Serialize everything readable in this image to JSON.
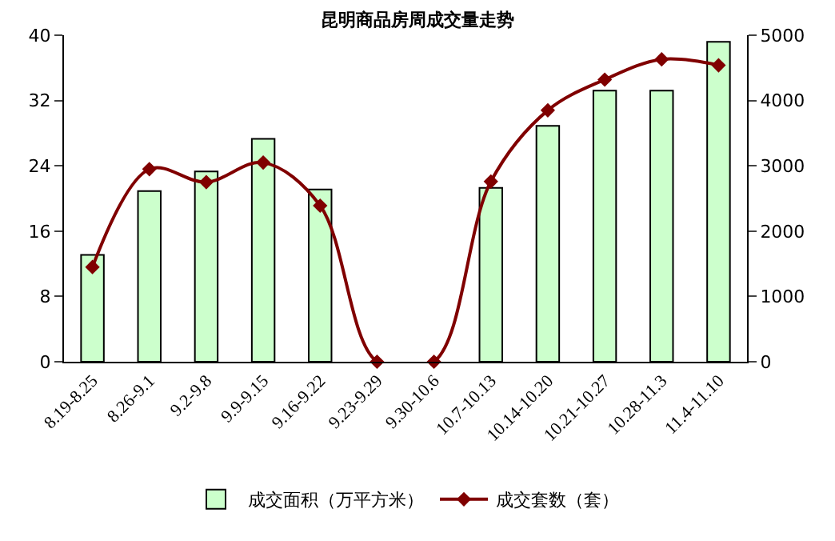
{
  "chart_data": {
    "type": "bar",
    "title": "昆明商品房周成交量走势",
    "categories": [
      "8.19-8.25",
      "8.26-9.1",
      "9.2-9.8",
      "9.9-9.15",
      "9.16-9.22",
      "9.23-9.29",
      "9.30-10.6",
      "10.7-10.13",
      "10.14-10.20",
      "10.21-10.27",
      "10.28-11.3",
      "11.4-11.10"
    ],
    "series": [
      {
        "name": "成交面积（万平方米）",
        "color": "#ccffcc",
        "values": [
          13.1,
          20.9,
          23.3,
          27.3,
          21.1,
          null,
          null,
          21.3,
          28.9,
          33.2,
          33.2,
          39.2
        ]
      },
      {
        "name": "成交套数（套）",
        "type": "line",
        "axis": "y2",
        "color": "#800000",
        "marker": "diamond",
        "values": [
          1450,
          2950,
          2750,
          3050,
          2390,
          0,
          0,
          2760,
          3850,
          4320,
          4630,
          4540
        ]
      }
    ],
    "ylim": [
      0,
      40
    ],
    "yticks": [
      0,
      8,
      16,
      24,
      32,
      40
    ],
    "y2lim": [
      0,
      5000
    ],
    "y2ticks": [
      0,
      1000,
      2000,
      3000,
      4000,
      5000
    ],
    "legend": "bottom"
  }
}
